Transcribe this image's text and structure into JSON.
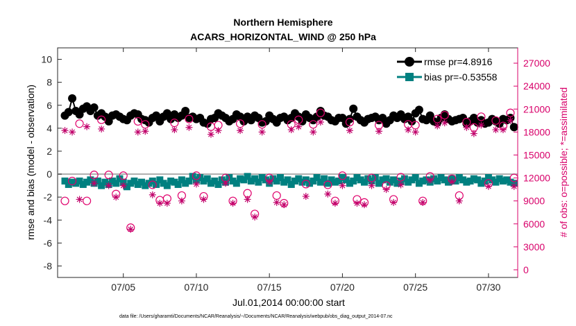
{
  "chart_data": {
    "type": "line",
    "title": "Northern Hemisphere",
    "subtitle": "ACARS_HORIZONTAL_WIND @ 250 hPa",
    "xlabel": "Jul.01,2014 00:00:00 start",
    "ylabel_left": "rmse and bias (model - observation)",
    "ylabel_right": "# of obs: o=possible; *=assimilated",
    "xlim": [
      0.5,
      32
    ],
    "ylim_left": [
      -9,
      11
    ],
    "ylim_right": [
      -1000,
      29000
    ],
    "x_ticks": [
      {
        "x": 5,
        "label": "07/05"
      },
      {
        "x": 10,
        "label": "07/10"
      },
      {
        "x": 15,
        "label": "07/15"
      },
      {
        "x": 20,
        "label": "07/20"
      },
      {
        "x": 25,
        "label": "07/25"
      },
      {
        "x": 30,
        "label": "07/30"
      }
    ],
    "y_ticks_left": [
      "-8",
      "-6",
      "-4",
      "-2",
      "0",
      "2",
      "4",
      "6",
      "8",
      "10"
    ],
    "y_ticks_right": [
      "0",
      "3000",
      "6000",
      "9000",
      "12000",
      "15000",
      "18000",
      "21000",
      "24000",
      "27000"
    ],
    "legend": [
      {
        "label": "rmse pr=4.8916",
        "color": "#000000",
        "marker": "circle"
      },
      {
        "label": "bias pr=-0.53558",
        "color": "#008080",
        "marker": "square"
      }
    ],
    "zero_line": 0,
    "series": [
      {
        "name": "rmse",
        "axis": "left",
        "color": "#000000",
        "marker": "circle",
        "x": [
          1.0,
          1.25,
          1.5,
          1.75,
          2.0,
          2.25,
          2.5,
          2.75,
          3.0,
          3.25,
          3.5,
          3.75,
          4.0,
          4.25,
          4.5,
          4.75,
          5.0,
          5.25,
          5.5,
          5.75,
          6.0,
          6.25,
          6.5,
          6.75,
          7.0,
          7.25,
          7.5,
          7.75,
          8.0,
          8.25,
          8.5,
          8.75,
          9.0,
          9.25,
          9.5,
          9.75,
          10.0,
          10.25,
          10.5,
          10.75,
          11.0,
          11.25,
          11.5,
          11.75,
          12.0,
          12.25,
          12.5,
          12.75,
          13.0,
          13.25,
          13.5,
          13.75,
          14.0,
          14.25,
          14.5,
          14.75,
          15.0,
          15.25,
          15.5,
          15.75,
          16.0,
          16.25,
          16.5,
          16.75,
          17.0,
          17.25,
          17.5,
          17.75,
          18.0,
          18.25,
          18.5,
          18.75,
          19.0,
          19.25,
          19.5,
          19.75,
          20.0,
          20.25,
          20.5,
          20.75,
          21.0,
          21.25,
          21.5,
          21.75,
          22.0,
          22.25,
          22.5,
          22.75,
          23.0,
          23.25,
          23.5,
          23.75,
          24.0,
          24.25,
          24.5,
          24.75,
          25.0,
          25.25,
          25.5,
          25.75,
          26.0,
          26.25,
          26.5,
          26.75,
          27.0,
          27.25,
          27.5,
          27.75,
          28.0,
          28.25,
          28.5,
          28.75,
          29.0,
          29.25,
          29.5,
          29.75,
          30.0,
          30.25,
          30.5,
          30.75,
          31.0,
          31.25,
          31.5,
          31.75
        ],
        "y": [
          5.1,
          5.4,
          6.6,
          5.5,
          5.2,
          5.7,
          5.9,
          5.5,
          5.8,
          5.1,
          5.3,
          5.0,
          4.6,
          5.1,
          5.2,
          5.0,
          4.8,
          4.7,
          5.1,
          5.3,
          5.2,
          4.8,
          4.7,
          4.5,
          4.9,
          5.1,
          4.6,
          5.0,
          5.3,
          4.8,
          5.2,
          4.9,
          5.1,
          5.5,
          4.9,
          5.0,
          4.8,
          4.9,
          4.5,
          4.4,
          4.8,
          4.9,
          5.3,
          5.1,
          4.9,
          4.6,
          4.8,
          5.2,
          5.0,
          4.6,
          5.0,
          4.7,
          5.1,
          4.9,
          4.5,
          4.6,
          5.1,
          4.8,
          4.5,
          4.9,
          5.0,
          4.7,
          4.9,
          5.3,
          5.0,
          4.6,
          5.2,
          4.9,
          4.7,
          5.0,
          5.5,
          5.1,
          5.0,
          4.7,
          4.6,
          4.9,
          4.9,
          4.4,
          4.8,
          5.7,
          5.0,
          4.7,
          4.5,
          4.8,
          4.9,
          5.0,
          4.7,
          4.9,
          4.4,
          4.7,
          5.1,
          4.9,
          5.2,
          4.8,
          5.0,
          4.6,
          5.3,
          5.6,
          4.8,
          4.7,
          5.1,
          4.6,
          4.5,
          4.9,
          5.2,
          4.8,
          4.6,
          4.7,
          4.8,
          4.9,
          4.4,
          4.6,
          4.9,
          4.5,
          4.7,
          4.4,
          4.5,
          4.8,
          4.6,
          4.4,
          4.8,
          4.7,
          4.9,
          4.1
        ]
      },
      {
        "name": "bias",
        "axis": "left",
        "color": "#008080",
        "marker": "square",
        "x": [
          1.0,
          1.25,
          1.5,
          1.75,
          2.0,
          2.25,
          2.5,
          2.75,
          3.0,
          3.25,
          3.5,
          3.75,
          4.0,
          4.25,
          4.5,
          4.75,
          5.0,
          5.25,
          5.5,
          5.75,
          6.0,
          6.25,
          6.5,
          6.75,
          7.0,
          7.25,
          7.5,
          7.75,
          8.0,
          8.25,
          8.5,
          8.75,
          9.0,
          9.25,
          9.5,
          9.75,
          10.0,
          10.25,
          10.5,
          10.75,
          11.0,
          11.25,
          11.5,
          11.75,
          12.0,
          12.25,
          12.5,
          12.75,
          13.0,
          13.25,
          13.5,
          13.75,
          14.0,
          14.25,
          14.5,
          14.75,
          15.0,
          15.25,
          15.5,
          15.75,
          16.0,
          16.25,
          16.5,
          16.75,
          17.0,
          17.25,
          17.5,
          17.75,
          18.0,
          18.25,
          18.5,
          18.75,
          19.0,
          19.25,
          19.5,
          19.75,
          20.0,
          20.25,
          20.5,
          20.75,
          21.0,
          21.25,
          21.5,
          21.75,
          22.0,
          22.25,
          22.5,
          22.75,
          23.0,
          23.25,
          23.5,
          23.75,
          24.0,
          24.25,
          24.5,
          24.75,
          25.0,
          25.25,
          25.5,
          25.75,
          26.0,
          26.25,
          26.5,
          26.75,
          27.0,
          27.25,
          27.5,
          27.75,
          28.0,
          28.25,
          28.5,
          28.75,
          29.0,
          29.25,
          29.5,
          29.75,
          30.0,
          30.25,
          30.5,
          30.75,
          31.0,
          31.25,
          31.5,
          31.75
        ],
        "y": [
          -0.6,
          -0.9,
          -0.7,
          -0.8,
          -0.6,
          -0.9,
          -0.7,
          -0.5,
          -0.8,
          -0.6,
          -1.0,
          -0.7,
          -0.9,
          -0.6,
          -0.8,
          -0.4,
          -0.7,
          -1.1,
          -0.8,
          -0.6,
          -0.9,
          -0.7,
          -1.0,
          -0.8,
          -0.6,
          -0.9,
          -0.5,
          -0.8,
          -1.0,
          -0.6,
          -0.7,
          -0.9,
          -0.5,
          -0.8,
          -0.6,
          -0.2,
          -0.5,
          -0.3,
          -0.6,
          -0.4,
          -0.8,
          -0.6,
          -0.9,
          -0.5,
          -0.7,
          -0.3,
          -0.6,
          -0.8,
          -0.4,
          -0.5,
          -0.2,
          -0.6,
          -0.4,
          -0.7,
          -0.3,
          -0.5,
          -0.8,
          -0.4,
          -0.6,
          -0.3,
          -0.7,
          -0.5,
          -0.9,
          -0.6,
          -0.4,
          -0.7,
          -0.5,
          -0.8,
          -0.6,
          -0.3,
          -0.7,
          -0.4,
          -0.8,
          -0.5,
          -0.7,
          -0.6,
          -0.3,
          -0.5,
          -0.8,
          -0.6,
          -0.3,
          -0.5,
          -0.7,
          -0.4,
          -0.6,
          -0.3,
          -0.8,
          -0.5,
          -0.4,
          -0.7,
          -0.5,
          -0.8,
          -0.6,
          -0.4,
          -0.7,
          -0.5,
          -0.3,
          -0.8,
          -0.6,
          -0.5,
          -0.7,
          -0.4,
          -0.6,
          -0.3,
          -0.5,
          -0.7,
          -0.4,
          -0.6,
          -0.3,
          -0.5,
          -0.7,
          -0.6,
          -0.4,
          -0.5,
          -0.8,
          -0.6,
          -0.3,
          -0.5,
          -0.7,
          -0.4,
          -0.6,
          -0.5,
          -0.7,
          -0.8
        ]
      },
      {
        "name": "possible",
        "axis": "right",
        "color": "#e0006c",
        "marker": "open-circle",
        "x": [
          1.0,
          1.5,
          2.0,
          2.5,
          3.0,
          3.5,
          4.0,
          4.5,
          5.0,
          5.5,
          6.0,
          6.5,
          7.0,
          7.5,
          8.0,
          8.5,
          9.0,
          9.5,
          10.0,
          10.5,
          11.0,
          11.5,
          12.0,
          12.5,
          13.0,
          13.5,
          14.0,
          14.5,
          15.0,
          15.5,
          16.0,
          16.5,
          17.0,
          17.5,
          18.0,
          18.5,
          19.0,
          19.5,
          20.0,
          20.5,
          21.0,
          21.5,
          22.0,
          22.5,
          23.0,
          23.5,
          24.0,
          24.5,
          25.0,
          25.5,
          26.0,
          26.5,
          27.0,
          27.5,
          28.0,
          28.5,
          29.0,
          29.5,
          30.0,
          30.5,
          31.0,
          31.5,
          31.75
        ],
        "y": [
          9000,
          11600,
          19100,
          9000,
          12400,
          19600,
          12400,
          9900,
          12300,
          5500,
          19400,
          19000,
          11100,
          9100,
          9300,
          19200,
          9700,
          19700,
          12300,
          9600,
          18700,
          18900,
          12000,
          9000,
          19100,
          10000,
          7300,
          19000,
          12000,
          9700,
          8700,
          19000,
          19600,
          11200,
          19000,
          20500,
          11100,
          9000,
          12300,
          19300,
          9200,
          8800,
          12000,
          18900,
          11000,
          9200,
          12100,
          19000,
          18900,
          9000,
          12200,
          19700,
          20200,
          11900,
          9700,
          19300,
          18600,
          20000,
          11300,
          19500,
          18800,
          20500,
          12000
        ]
      },
      {
        "name": "assimilated",
        "axis": "right",
        "color": "#c0006a",
        "marker": "asterisk",
        "x": [
          1.0,
          1.5,
          2.0,
          2.5,
          3.0,
          3.5,
          4.0,
          4.5,
          5.0,
          5.5,
          6.0,
          6.5,
          7.0,
          7.5,
          8.0,
          8.5,
          9.0,
          9.5,
          10.0,
          10.5,
          11.0,
          11.5,
          12.0,
          12.5,
          13.0,
          13.5,
          14.0,
          14.5,
          15.0,
          15.5,
          16.0,
          16.5,
          17.0,
          17.5,
          18.0,
          18.5,
          19.0,
          19.5,
          20.0,
          20.5,
          21.0,
          21.5,
          22.0,
          22.5,
          23.0,
          23.5,
          24.0,
          24.5,
          25.0,
          25.5,
          26.0,
          26.5,
          27.0,
          27.5,
          28.0,
          28.5,
          29.0,
          29.5,
          30.0,
          30.5,
          31.0,
          31.5,
          31.75
        ],
        "y": [
          18200,
          18000,
          9200,
          18700,
          11300,
          18400,
          11000,
          9500,
          11000,
          5300,
          18000,
          18100,
          9800,
          8700,
          8700,
          18300,
          9000,
          18600,
          11200,
          9200,
          17700,
          18200,
          11300,
          8700,
          18200,
          9200,
          6900,
          18000,
          11500,
          8800,
          8500,
          18300,
          18700,
          9600,
          18000,
          19300,
          9900,
          8700,
          11000,
          18200,
          8700,
          8500,
          11000,
          18100,
          10500,
          8800,
          11100,
          18300,
          18000,
          8800,
          11700,
          18800,
          19200,
          11500,
          9000,
          18600,
          17800,
          18900,
          10900,
          18300,
          18300,
          19500,
          10900
        ]
      }
    ]
  },
  "footer": {
    "data_file": "data file: /Users/gharamti/Documents/NCAR/Reanalysis/~/Documents/NCAR/Reanalysis/webpub/obs_diag_output_2014-07.nc"
  }
}
